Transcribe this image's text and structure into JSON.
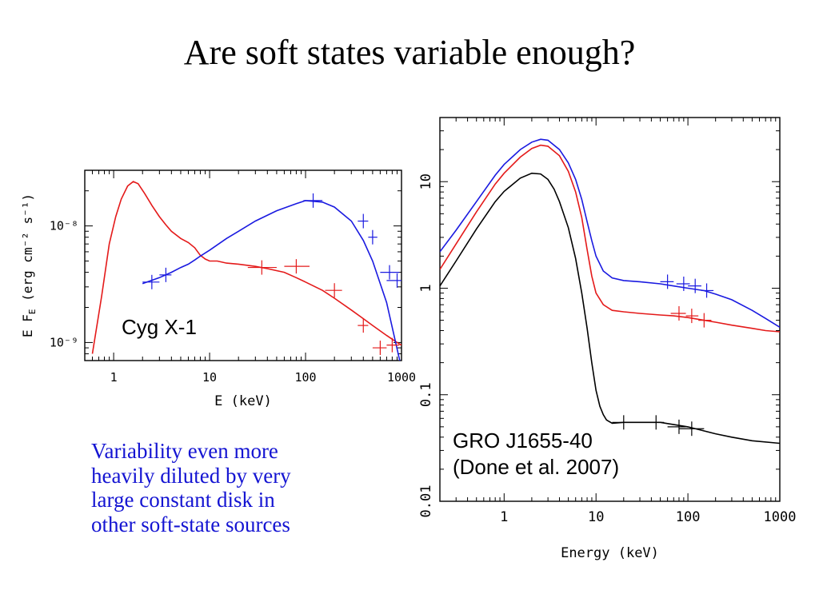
{
  "slide": {
    "title": "Are soft states variable enough?",
    "caption_lines": [
      "Variability even more",
      "heavily diluted by very",
      "large constant disk in",
      "other soft-state sources"
    ]
  },
  "colors": {
    "red": "#e41a1a",
    "blue": "#1a1ae0",
    "black": "#000000",
    "caption": "#1414d2"
  },
  "chart_data": [
    {
      "type": "line",
      "annotation": "Cyg X-1",
      "xlabel": "E (keV)",
      "ylabel": "E F_E (erg cm^-2 s^-1)",
      "xscale": "log",
      "yscale": "log",
      "xlim": [
        0.5,
        1000
      ],
      "ylim": [
        7e-10,
        3e-08
      ],
      "xtick_labels": [
        {
          "v": 1,
          "t": "1"
        },
        {
          "v": 10,
          "t": "10"
        },
        {
          "v": 100,
          "t": "100"
        },
        {
          "v": 1000,
          "t": "1000"
        }
      ],
      "ytick_labels": [
        {
          "v": 1e-09,
          "t": "10⁻⁹"
        },
        {
          "v": 1e-08,
          "t": "10⁻⁸"
        }
      ],
      "series": [
        {
          "color": "#e41a1a",
          "x": [
            0.6,
            0.75,
            0.9,
            1.05,
            1.2,
            1.4,
            1.6,
            1.8,
            2.1,
            2.5,
            3,
            3.5,
            4,
            5,
            6,
            7,
            8,
            9,
            10,
            12,
            15,
            20,
            30,
            40,
            60,
            80,
            100,
            150,
            200,
            300,
            400,
            500,
            700,
            900,
            1000
          ],
          "y": [
            8e-10,
            2.5e-09,
            7e-09,
            1.2e-08,
            1.7e-08,
            2.2e-08,
            2.4e-08,
            2.3e-08,
            1.9e-08,
            1.5e-08,
            1.2e-08,
            1.02e-08,
            9e-09,
            7.8e-09,
            7.2e-09,
            6.5e-09,
            5.6e-09,
            5.2e-09,
            5e-09,
            5e-09,
            4.8e-09,
            4.7e-09,
            4.5e-09,
            4.3e-09,
            4e-09,
            3.6e-09,
            3.3e-09,
            2.8e-09,
            2.4e-09,
            1.9e-09,
            1.6e-09,
            1.4e-09,
            1.15e-09,
            1e-09,
            9.5e-10
          ]
        },
        {
          "color": "#1a1ae0",
          "x": [
            2,
            3,
            4,
            5,
            6,
            7,
            8,
            10,
            15,
            20,
            30,
            50,
            80,
            100,
            150,
            200,
            300,
            400,
            500,
            700,
            1000
          ],
          "y": [
            3.2e-09,
            3.6e-09,
            4e-09,
            4.4e-09,
            4.7e-09,
            5.1e-09,
            5.5e-09,
            6.2e-09,
            7.8e-09,
            9e-09,
            1.1e-08,
            1.35e-08,
            1.55e-08,
            1.65e-08,
            1.6e-08,
            1.45e-08,
            1.1e-08,
            7.5e-09,
            5e-09,
            2.2e-09,
            6e-10
          ]
        }
      ],
      "errorbars": [
        {
          "color": "#1a1ae0",
          "points": [
            [
              2.5,
              3.3e-09,
              2,
              3
            ],
            [
              3.5,
              3.8e-09,
              3,
              4
            ],
            [
              120,
              1.65e-08,
              95,
              150
            ],
            [
              400,
              1.1e-08,
              350,
              450
            ],
            [
              500,
              8e-09,
              450,
              560
            ],
            [
              750,
              4e-09,
              600,
              950
            ],
            [
              900,
              3.4e-09,
              700,
              1000
            ]
          ]
        },
        {
          "color": "#e41a1a",
          "points": [
            [
              35,
              4.4e-09,
              25,
              50
            ],
            [
              80,
              4.5e-09,
              60,
              110
            ],
            [
              200,
              2.8e-09,
              160,
              240
            ],
            [
              400,
              1.4e-09,
              350,
              450
            ],
            [
              600,
              9e-10,
              500,
              700
            ],
            [
              800,
              9.5e-10,
              700,
              950
            ]
          ]
        }
      ]
    },
    {
      "type": "line",
      "annotation": "GRO J1655-40\n(Done et al. 2007)",
      "xlabel": "Energy (keV)",
      "ylabel": "",
      "xscale": "log",
      "yscale": "log",
      "xlim": [
        0.2,
        1000
      ],
      "ylim": [
        0.01,
        40
      ],
      "xtick_labels": [
        {
          "v": 1,
          "t": "1"
        },
        {
          "v": 10,
          "t": "10"
        },
        {
          "v": 100,
          "t": "100"
        },
        {
          "v": 1000,
          "t": "1000"
        }
      ],
      "ytick_labels": [
        {
          "v": 0.01,
          "t": "0.01"
        },
        {
          "v": 0.1,
          "t": "0.1"
        },
        {
          "v": 1,
          "t": "1"
        },
        {
          "v": 10,
          "t": "10"
        }
      ],
      "series": [
        {
          "color": "#1a1ae0",
          "x": [
            0.2,
            0.3,
            0.5,
            0.8,
            1,
            1.5,
            2,
            2.5,
            3,
            4,
            5,
            6,
            7,
            8,
            9,
            10,
            12,
            15,
            20,
            30,
            50,
            70,
            100,
            150,
            200,
            300,
            500,
            700,
            1000
          ],
          "y": [
            2.2,
            3.5,
            6.5,
            11.5,
            14.5,
            20,
            23.5,
            25,
            24.5,
            20,
            15,
            10.5,
            6.8,
            4.2,
            2.8,
            2,
            1.45,
            1.25,
            1.18,
            1.15,
            1.1,
            1.05,
            1,
            0.95,
            0.88,
            0.78,
            0.62,
            0.52,
            0.43
          ]
        },
        {
          "color": "#e41a1a",
          "x": [
            0.2,
            0.3,
            0.5,
            0.8,
            1,
            1.5,
            2,
            2.5,
            3,
            4,
            5,
            6,
            7,
            8,
            9,
            10,
            12,
            15,
            20,
            30,
            50,
            70,
            100,
            150,
            200,
            300,
            500,
            700,
            1000
          ],
          "y": [
            1.5,
            2.6,
            5.2,
            9.5,
            12,
            17,
            20.5,
            22,
            21.5,
            17.5,
            12.5,
            8,
            4.6,
            2.3,
            1.3,
            0.9,
            0.7,
            0.62,
            0.6,
            0.58,
            0.56,
            0.55,
            0.53,
            0.5,
            0.48,
            0.45,
            0.42,
            0.4,
            0.39
          ]
        },
        {
          "color": "#000000",
          "x": [
            0.2,
            0.3,
            0.5,
            0.8,
            1,
            1.5,
            2,
            2.5,
            3,
            3.5,
            4,
            5,
            6,
            7,
            8,
            9,
            10,
            11,
            12,
            13,
            15,
            20,
            30,
            50,
            100,
            200,
            300,
            500,
            1000
          ],
          "y": [
            1.05,
            1.8,
            3.6,
            6.5,
            8.1,
            10.8,
            12,
            11.8,
            10.5,
            8.5,
            6.5,
            3.7,
            1.9,
            0.9,
            0.42,
            0.2,
            0.11,
            0.078,
            0.065,
            0.058,
            0.054,
            0.055,
            0.055,
            0.055,
            0.05,
            0.043,
            0.04,
            0.037,
            0.035
          ]
        }
      ],
      "errorbars": [
        {
          "color": "#1a1ae0",
          "points": [
            [
              60,
              1.15,
              50,
              70
            ],
            [
              90,
              1.1,
              75,
              105
            ],
            [
              120,
              1.05,
              100,
              140
            ],
            [
              160,
              0.95,
              140,
              190
            ]
          ]
        },
        {
          "color": "#e41a1a",
          "points": [
            [
              80,
              0.58,
              65,
              95
            ],
            [
              110,
              0.55,
              95,
              130
            ],
            [
              150,
              0.5,
              130,
              180
            ]
          ]
        },
        {
          "color": "#000000",
          "points": [
            [
              20,
              0.055,
              15,
              28
            ],
            [
              45,
              0.055,
              35,
              55
            ],
            [
              80,
              0.05,
              60,
              95
            ],
            [
              110,
              0.048,
              80,
              150
            ]
          ]
        }
      ]
    }
  ]
}
